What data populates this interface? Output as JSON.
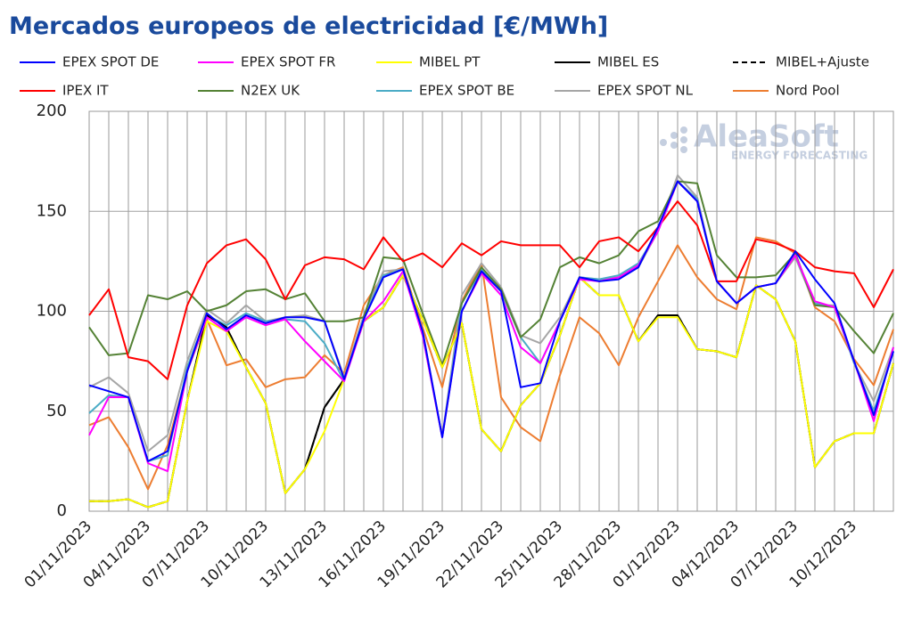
{
  "chart_data": {
    "type": "line",
    "title": "Mercados europeos de electricidad [€/MWh]",
    "logo": {
      "name": "AleaSoft",
      "tagline": "ENERGY FORECASTING"
    },
    "categories": [
      "01/11/2023",
      null,
      null,
      "04/11/2023",
      null,
      null,
      "07/11/2023",
      null,
      null,
      "10/11/2023",
      null,
      null,
      "13/11/2023",
      null,
      null,
      "16/11/2023",
      null,
      null,
      "19/11/2023",
      null,
      null,
      "22/11/2023",
      null,
      null,
      "25/11/2023",
      null,
      null,
      "28/11/2023",
      null,
      null,
      "01/12/2023",
      null,
      null,
      "04/12/2023",
      null,
      null,
      "07/12/2023",
      null,
      null,
      "10/12/2023",
      null,
      null
    ],
    "ylim": [
      0,
      200
    ],
    "yticks": [
      0,
      50,
      100,
      150,
      200
    ],
    "grid": true,
    "series": [
      {
        "name": "EPEX SPOT DE",
        "color": "#0000ff",
        "values": [
          63,
          60,
          57,
          25,
          30,
          70,
          99,
          91,
          98,
          94,
          97,
          97,
          95,
          66,
          96,
          117,
          121,
          90,
          37,
          100,
          120,
          110,
          62,
          64,
          95,
          117,
          115,
          116,
          122,
          142,
          165,
          155,
          115,
          104,
          112,
          114,
          130,
          116,
          104,
          75,
          48,
          80
        ]
      },
      {
        "name": "EPEX SPOT FR",
        "color": "#ff00ff",
        "values": [
          38,
          57,
          57,
          24,
          20,
          70,
          97,
          90,
          97,
          93,
          96,
          85,
          75,
          65,
          95,
          105,
          120,
          88,
          37,
          100,
          119,
          108,
          82,
          74,
          95,
          116,
          115,
          117,
          123,
          140,
          165,
          155,
          115,
          104,
          112,
          114,
          128,
          105,
          102,
          75,
          45,
          82
        ]
      },
      {
        "name": "MIBEL PT",
        "color": "#ffff00",
        "values": [
          5,
          5,
          6,
          2,
          5,
          55,
          95,
          90,
          72,
          54,
          9,
          21,
          40,
          66,
          95,
          102,
          118,
          96,
          72,
          94,
          41,
          30,
          53,
          64,
          88,
          117,
          108,
          108,
          85,
          97,
          97,
          81,
          80,
          77,
          113,
          106,
          85,
          22,
          35,
          39,
          39,
          74
        ]
      },
      {
        "name": "MIBEL ES",
        "color": "#000000",
        "values": [
          5,
          5,
          6,
          2,
          5,
          55,
          98,
          92,
          72,
          54,
          9,
          21,
          52,
          66,
          95,
          102,
          118,
          96,
          72,
          94,
          41,
          30,
          53,
          64,
          88,
          117,
          108,
          108,
          85,
          98,
          98,
          81,
          80,
          77,
          113,
          106,
          85,
          22,
          35,
          39,
          39,
          74
        ]
      },
      {
        "name": "MIBEL+Ajuste",
        "color": "#000000",
        "dashed": true,
        "values": [
          5,
          5,
          6,
          2,
          5,
          55,
          98,
          92,
          72,
          54,
          9,
          21,
          52,
          66,
          95,
          102,
          118,
          96,
          72,
          94,
          41,
          30,
          53,
          64,
          88,
          117,
          108,
          108,
          85,
          98,
          98,
          81,
          80,
          77,
          113,
          106,
          85,
          22,
          35,
          39,
          39,
          74
        ]
      },
      {
        "name": "IPEX IT",
        "color": "#ff0000",
        "values": [
          98,
          111,
          77,
          75,
          66,
          103,
          124,
          133,
          136,
          126,
          106,
          123,
          127,
          126,
          121,
          137,
          125,
          129,
          122,
          134,
          128,
          135,
          133,
          133,
          133,
          122,
          135,
          137,
          130,
          142,
          155,
          143,
          115,
          115,
          136,
          134,
          130,
          122,
          120,
          119,
          102,
          121
        ]
      },
      {
        "name": "N2EX UK",
        "color": "#548235",
        "values": [
          92,
          78,
          79,
          108,
          106,
          110,
          100,
          103,
          110,
          111,
          106,
          109,
          95,
          95,
          97,
          127,
          126,
          99,
          73,
          104,
          122,
          111,
          87,
          96,
          122,
          127,
          124,
          128,
          140,
          145,
          165,
          164,
          128,
          117,
          117,
          118,
          129,
          103,
          102,
          90,
          79,
          99
        ]
      },
      {
        "name": "EPEX SPOT BE",
        "color": "#4bacc6",
        "values": [
          49,
          58,
          57,
          25,
          28,
          72,
          98,
          93,
          99,
          95,
          96,
          95,
          84,
          65,
          97,
          118,
          121,
          88,
          37,
          104,
          121,
          110,
          87,
          74,
          95,
          117,
          116,
          118,
          124,
          140,
          165,
          156,
          115,
          104,
          112,
          114,
          128,
          104,
          102,
          74,
          50,
          80
        ]
      },
      {
        "name": "EPEX SPOT NL",
        "color": "#a6a6a6",
        "values": [
          62,
          67,
          59,
          30,
          38,
          75,
          101,
          94,
          103,
          95,
          97,
          98,
          95,
          67,
          98,
          120,
          121,
          90,
          37,
          108,
          124,
          112,
          88,
          84,
          97,
          117,
          116,
          117,
          122,
          140,
          168,
          157,
          115,
          104,
          112,
          114,
          127,
          103,
          103,
          74,
          55,
          82
        ]
      },
      {
        "name": "Nord Pool",
        "color": "#ed7d31",
        "values": [
          43,
          47,
          32,
          11,
          33,
          70,
          96,
          73,
          76,
          62,
          66,
          67,
          78,
          69,
          103,
          118,
          122,
          92,
          62,
          105,
          124,
          57,
          42,
          35,
          68,
          97,
          89,
          73,
          97,
          115,
          133,
          117,
          106,
          101,
          137,
          135,
          129,
          102,
          95,
          76,
          63,
          91
        ]
      }
    ]
  }
}
